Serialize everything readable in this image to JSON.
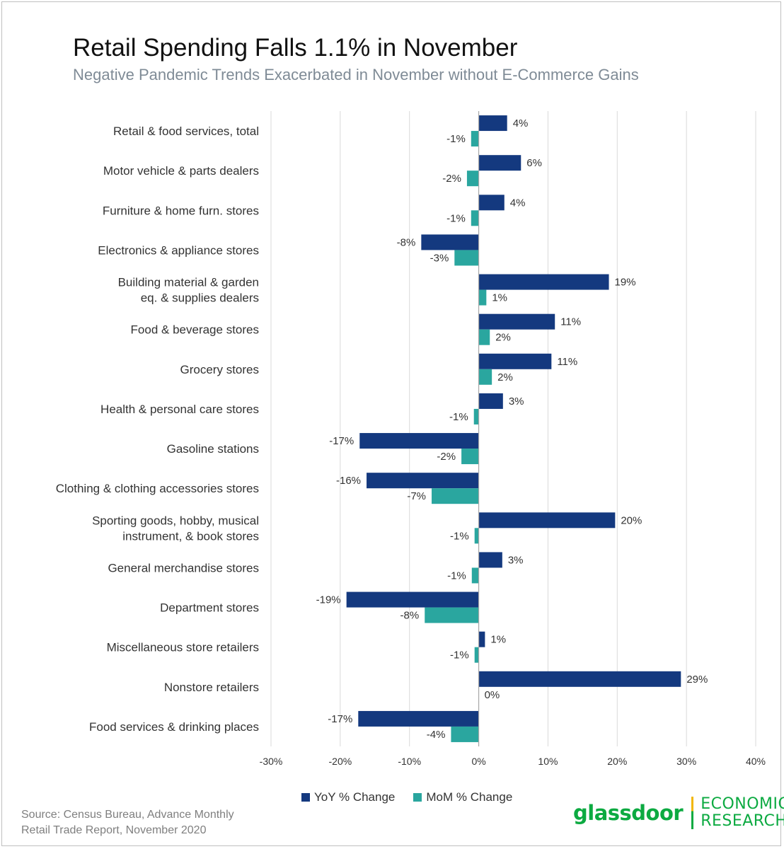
{
  "header": {
    "title": "Retail Spending Falls 1.1% in November",
    "subtitle": "Negative Pandemic Trends Exacerbated in November without E-Commerce Gains"
  },
  "colors": {
    "yoy": "#14397f",
    "mom": "#2aa69f",
    "grid": "#d9d9d9",
    "axis": "#a6a6a6",
    "brand": "#0caa41",
    "brand_accent": "#f2b705"
  },
  "chart_data": {
    "type": "bar",
    "orientation": "horizontal",
    "categories": [
      [
        "Retail & food services, total"
      ],
      [
        "Motor vehicle & parts dealers"
      ],
      [
        "Furniture & home furn. stores"
      ],
      [
        "Electronics & appliance stores"
      ],
      [
        "Building material & garden",
        "eq. & supplies dealers"
      ],
      [
        "Food & beverage stores"
      ],
      [
        "Grocery stores"
      ],
      [
        "Health & personal care stores"
      ],
      [
        "Gasoline stations"
      ],
      [
        "Clothing & clothing accessories stores"
      ],
      [
        "Sporting goods, hobby, musical",
        "instrument, & book stores"
      ],
      [
        "General merchandise stores"
      ],
      [
        "Department stores"
      ],
      [
        "Miscellaneous store retailers"
      ],
      [
        "Nonstore retailers"
      ],
      [
        "Food services & drinking places"
      ]
    ],
    "series": [
      {
        "name": "YoY % Change",
        "values": [
          4.1,
          6.1,
          3.7,
          -8.3,
          18.8,
          11.0,
          10.5,
          3.5,
          -17.2,
          -16.2,
          19.7,
          3.4,
          -19.1,
          0.9,
          29.2,
          -17.4
        ],
        "labels": [
          "4%",
          "6%",
          "4%",
          "-8%",
          "19%",
          "11%",
          "11%",
          "3%",
          "-17%",
          "-16%",
          "20%",
          "3%",
          "-19%",
          "1%",
          "29%",
          "-17%"
        ]
      },
      {
        "name": "MoM % Change",
        "values": [
          -1.1,
          -1.7,
          -1.1,
          -3.5,
          1.1,
          1.6,
          1.9,
          -0.7,
          -2.5,
          -6.8,
          -0.6,
          -1.0,
          -7.8,
          -0.6,
          0.0,
          -4.0
        ],
        "labels": [
          "-1%",
          "-2%",
          "-1%",
          "-3%",
          "1%",
          "2%",
          "2%",
          "-1%",
          "-2%",
          "-7%",
          "-1%",
          "-1%",
          "-8%",
          "-1%",
          "0%",
          "-4%"
        ]
      }
    ],
    "xlim": [
      -30,
      40
    ],
    "xticks": [
      -30,
      -20,
      -10,
      0,
      10,
      20,
      30,
      40
    ],
    "xtick_labels": [
      "-30%",
      "-20%",
      "-10%",
      "0%",
      "10%",
      "20%",
      "30%",
      "40%"
    ],
    "grid": true,
    "legend_position": "bottom"
  },
  "footer": {
    "source_line1": "Source: Census Bureau, Advance Monthly",
    "source_line2": "Retail Trade Report, November 2020",
    "brand_name": "glassdoor",
    "brand_unit_line1": "ECONOMIC",
    "brand_unit_line2": "RESEARCH"
  }
}
